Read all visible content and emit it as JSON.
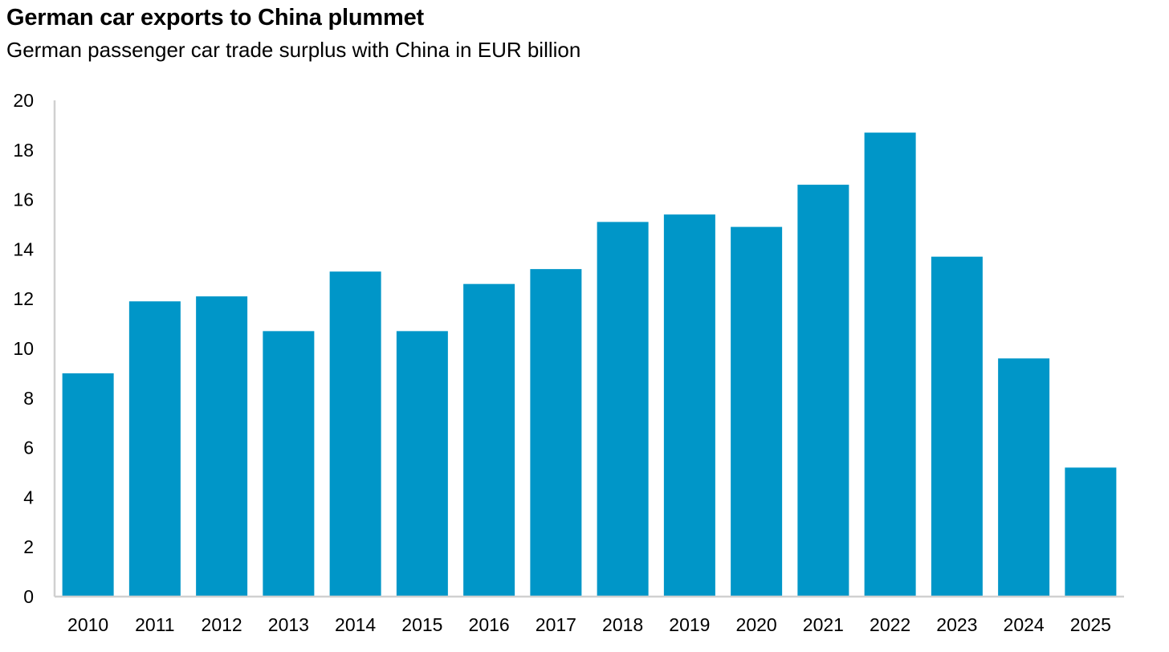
{
  "chart_data": {
    "type": "bar",
    "title": "German car exports to China plummet",
    "subtitle": "German passenger car trade surplus with China in EUR billion",
    "categories": [
      "2010",
      "2011",
      "2012",
      "2013",
      "2014",
      "2015",
      "2016",
      "2017",
      "2018",
      "2019",
      "2020",
      "2021",
      "2022",
      "2023",
      "2024",
      "2025"
    ],
    "values": [
      9.0,
      11.9,
      12.1,
      10.7,
      13.1,
      10.7,
      12.6,
      13.2,
      15.1,
      15.4,
      14.9,
      16.6,
      18.7,
      13.7,
      9.6,
      5.2
    ],
    "ylim": [
      0,
      20
    ],
    "yticks": [
      0,
      2,
      4,
      6,
      8,
      10,
      12,
      14,
      16,
      18,
      20
    ],
    "ytick_labels": [
      "0",
      "2",
      "4",
      "6",
      "8",
      "10",
      "12",
      "14",
      "16",
      "18",
      "20"
    ],
    "xlabel": "",
    "ylabel": "",
    "grid": false,
    "bar_color": "#0096c8",
    "axis_color": "#d0d0d0"
  }
}
